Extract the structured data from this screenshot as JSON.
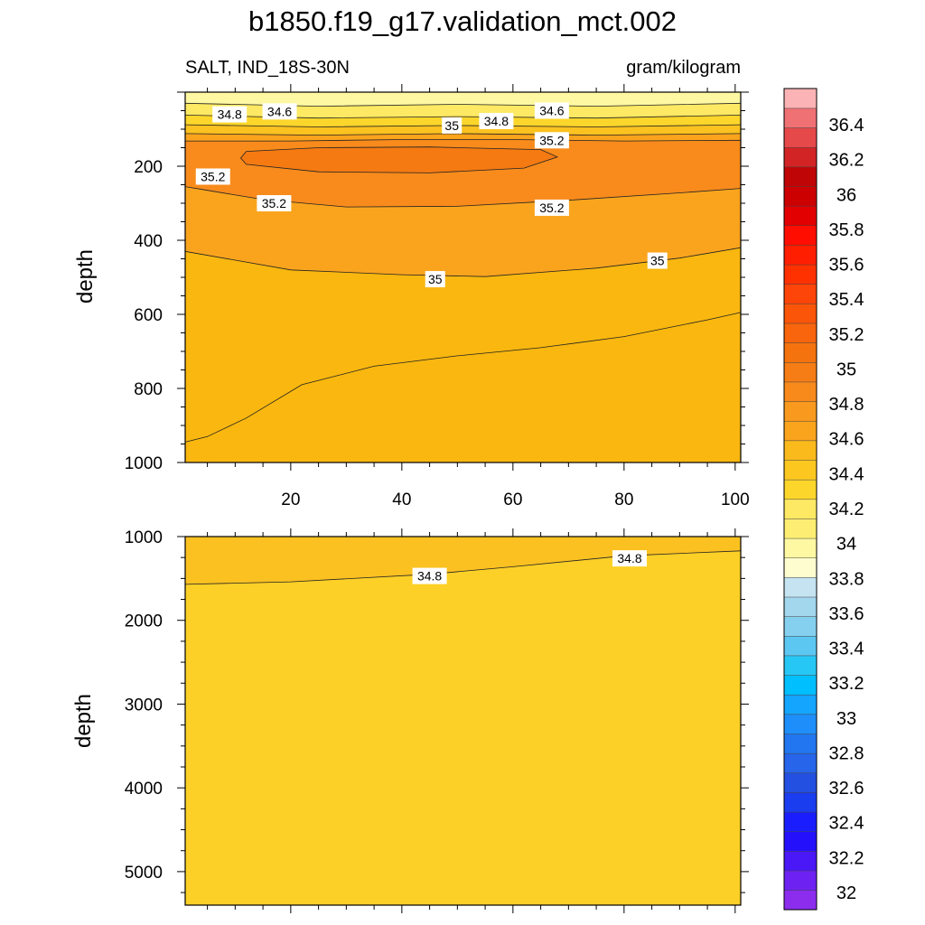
{
  "chart_data": {
    "type": "contour",
    "title": "b1850.f19_g17.validation_mct.002",
    "variable_label": "SALT, IND_18S-30N",
    "units_label": "gram/kilogram",
    "ylabel": "depth",
    "xlim": [
      1,
      101
    ],
    "x_tick_labels": [
      "20",
      "40",
      "60",
      "80",
      "100"
    ],
    "upper_panel": {
      "ylim": [
        0,
        1000
      ],
      "y_tick_labels": [
        "200",
        "400",
        "600",
        "800",
        "1000"
      ],
      "fill": "#f9b70f",
      "bands": [
        {
          "name": "lt346",
          "color": "#fef8a2",
          "pts": [
            [
              1,
              0
            ],
            [
              101,
              0
            ],
            [
              101,
              30
            ],
            [
              75,
              38
            ],
            [
              50,
              33
            ],
            [
              25,
              38
            ],
            [
              1,
              30
            ]
          ]
        },
        {
          "name": "b346",
          "color": "#fde963",
          "pts": [
            [
              1,
              30
            ],
            [
              25,
              38
            ],
            [
              50,
              33
            ],
            [
              75,
              38
            ],
            [
              101,
              30
            ],
            [
              101,
              62
            ],
            [
              75,
              70
            ],
            [
              50,
              66
            ],
            [
              25,
              70
            ],
            [
              1,
              62
            ]
          ]
        },
        {
          "name": "b348",
          "color": "#fcd62b",
          "pts": [
            [
              1,
              62
            ],
            [
              25,
              70
            ],
            [
              50,
              66
            ],
            [
              75,
              70
            ],
            [
              101,
              62
            ],
            [
              101,
              88
            ],
            [
              75,
              94
            ],
            [
              50,
              90
            ],
            [
              25,
              94
            ],
            [
              1,
              88
            ]
          ]
        },
        {
          "name": "b350",
          "color": "#fbc220",
          "pts": [
            [
              1,
              88
            ],
            [
              25,
              94
            ],
            [
              50,
              90
            ],
            [
              75,
              94
            ],
            [
              101,
              88
            ],
            [
              101,
              112
            ],
            [
              75,
              116
            ],
            [
              50,
              112
            ],
            [
              25,
              116
            ],
            [
              1,
              112
            ]
          ]
        },
        {
          "name": "b35",
          "color": "#fba31d",
          "pts": [
            [
              1,
              112
            ],
            [
              25,
              116
            ],
            [
              50,
              112
            ],
            [
              75,
              116
            ],
            [
              101,
              112
            ],
            [
              101,
              130
            ],
            [
              80,
              132
            ],
            [
              60,
              128
            ],
            [
              40,
              128
            ],
            [
              20,
              132
            ],
            [
              1,
              132
            ]
          ]
        },
        {
          "name": "b352",
          "color": "#f88b1c",
          "pts": [
            [
              1,
              132
            ],
            [
              20,
              132
            ],
            [
              40,
              128
            ],
            [
              60,
              128
            ],
            [
              80,
              132
            ],
            [
              101,
              130
            ],
            [
              101,
              260
            ],
            [
              90,
              272
            ],
            [
              70,
              292
            ],
            [
              50,
              308
            ],
            [
              30,
              310
            ],
            [
              15,
              290
            ],
            [
              5,
              265
            ],
            [
              1,
              255
            ]
          ]
        },
        {
          "name": "core",
          "color": "#f57a12",
          "pts": [
            [
              12,
              160
            ],
            [
              25,
              150
            ],
            [
              45,
              148
            ],
            [
              65,
              155
            ],
            [
              68,
              175
            ],
            [
              62,
              205
            ],
            [
              45,
              218
            ],
            [
              25,
              215
            ],
            [
              12,
              195
            ],
            [
              11,
              178
            ]
          ]
        },
        {
          "name": "mid350",
          "color": "#faa41e",
          "pts": [
            [
              1,
              255
            ],
            [
              5,
              265
            ],
            [
              15,
              290
            ],
            [
              30,
              310
            ],
            [
              50,
              308
            ],
            [
              70,
              292
            ],
            [
              90,
              272
            ],
            [
              101,
              260
            ],
            [
              101,
              420
            ],
            [
              90,
              448
            ],
            [
              75,
              475
            ],
            [
              55,
              498
            ],
            [
              40,
              493
            ],
            [
              20,
              480
            ],
            [
              1,
              430
            ]
          ]
        }
      ],
      "contours": [
        {
          "pts": [
            [
              1,
              30
            ],
            [
              25,
              38
            ],
            [
              50,
              33
            ],
            [
              75,
              38
            ],
            [
              101,
              30
            ]
          ]
        },
        {
          "pts": [
            [
              1,
              62
            ],
            [
              25,
              70
            ],
            [
              50,
              66
            ],
            [
              75,
              70
            ],
            [
              101,
              62
            ]
          ]
        },
        {
          "pts": [
            [
              1,
              88
            ],
            [
              25,
              94
            ],
            [
              50,
              90
            ],
            [
              75,
              94
            ],
            [
              101,
              88
            ]
          ]
        },
        {
          "pts": [
            [
              1,
              112
            ],
            [
              25,
              116
            ],
            [
              50,
              112
            ],
            [
              75,
              116
            ],
            [
              101,
              112
            ]
          ]
        },
        {
          "pts": [
            [
              1,
              132
            ],
            [
              20,
              132
            ],
            [
              40,
              128
            ],
            [
              60,
              128
            ],
            [
              80,
              132
            ],
            [
              101,
              130
            ]
          ]
        },
        {
          "pts": [
            [
              12,
              160
            ],
            [
              25,
              150
            ],
            [
              45,
              148
            ],
            [
              65,
              155
            ],
            [
              68,
              175
            ],
            [
              62,
              205
            ],
            [
              45,
              218
            ],
            [
              25,
              215
            ],
            [
              12,
              195
            ],
            [
              11,
              178
            ],
            [
              12,
              160
            ]
          ]
        },
        {
          "pts": [
            [
              1,
              255
            ],
            [
              5,
              265
            ],
            [
              15,
              290
            ],
            [
              30,
              310
            ],
            [
              50,
              308
            ],
            [
              70,
              292
            ],
            [
              90,
              272
            ],
            [
              101,
              260
            ]
          ]
        },
        {
          "pts": [
            [
              1,
              430
            ],
            [
              20,
              480
            ],
            [
              40,
              493
            ],
            [
              55,
              498
            ],
            [
              75,
              475
            ],
            [
              90,
              448
            ],
            [
              101,
              420
            ]
          ]
        },
        {
          "pts": [
            [
              1,
              945
            ],
            [
              5,
              930
            ],
            [
              12,
              880
            ],
            [
              22,
              790
            ],
            [
              35,
              740
            ],
            [
              50,
              712
            ],
            [
              65,
              690
            ],
            [
              80,
              660
            ],
            [
              95,
              615
            ],
            [
              101,
              595
            ]
          ]
        }
      ],
      "labels": [
        {
          "text": "34.8",
          "x": 9,
          "y": 60
        },
        {
          "text": "34.6",
          "x": 18,
          "y": 52
        },
        {
          "text": "35",
          "x": 49,
          "y": 90
        },
        {
          "text": "34.8",
          "x": 57,
          "y": 78
        },
        {
          "text": "34.6",
          "x": 67,
          "y": 50
        },
        {
          "text": "35.2",
          "x": 67,
          "y": 130
        },
        {
          "text": "35.2",
          "x": 6,
          "y": 228
        },
        {
          "text": "35.2",
          "x": 17,
          "y": 300
        },
        {
          "text": "35.2",
          "x": 67,
          "y": 312
        },
        {
          "text": "35",
          "x": 86,
          "y": 455
        },
        {
          "text": "35",
          "x": 46,
          "y": 505
        }
      ]
    },
    "lower_panel": {
      "ylim": [
        1000,
        5400
      ],
      "y_tick_labels": [
        "1000",
        "2000",
        "3000",
        "4000",
        "5000"
      ],
      "fill": "#fcd027",
      "bands": [
        {
          "name": "top",
          "color": "#fbc121",
          "pts": [
            [
              1,
              1000
            ],
            [
              101,
              1000
            ],
            [
              101,
              1170
            ],
            [
              80,
              1230
            ],
            [
              60,
              1360
            ],
            [
              45,
              1450
            ],
            [
              20,
              1540
            ],
            [
              1,
              1570
            ]
          ]
        }
      ],
      "contours": [
        {
          "pts": [
            [
              1,
              1570
            ],
            [
              20,
              1540
            ],
            [
              45,
              1450
            ],
            [
              60,
              1360
            ],
            [
              80,
              1230
            ],
            [
              101,
              1170
            ]
          ]
        }
      ],
      "labels": [
        {
          "text": "34.8",
          "x": 45,
          "y": 1470
        },
        {
          "text": "34.8",
          "x": 81,
          "y": 1260
        }
      ]
    },
    "colorbar": {
      "levels": [
        "32",
        "32.2",
        "32.4",
        "32.6",
        "32.8",
        "33",
        "33.2",
        "33.4",
        "33.6",
        "33.8",
        "34",
        "34.2",
        "34.4",
        "34.6",
        "34.8",
        "35",
        "35.2",
        "35.4",
        "35.6",
        "35.8",
        "36",
        "36.2",
        "36.4"
      ],
      "colors": [
        "#8c2dee",
        "#6e22f2",
        "#4a17f6",
        "#2410fb",
        "#1a1eff",
        "#1a3df0",
        "#2350e0",
        "#2766ea",
        "#2277f0",
        "#1e8ffa",
        "#14a5ff",
        "#00bfff",
        "#27c7f5",
        "#5cc8f2",
        "#86d0ef",
        "#a2d7ee",
        "#c5e3f1",
        "#fdfdcf",
        "#fef8a2",
        "#fdee73",
        "#fde963",
        "#fcd62b",
        "#fcc820",
        "#fbba1c",
        "#faa41e",
        "#f99a1e",
        "#f88a1c",
        "#f67d16",
        "#f5730e",
        "#f8650d",
        "#fb5509",
        "#fd4409",
        "#ff3100",
        "#ff1e00",
        "#ff0e00",
        "#e30000",
        "#cd0000",
        "#c00506",
        "#d22425",
        "#e5494a",
        "#ef7174",
        "#fbb3b5"
      ]
    }
  }
}
